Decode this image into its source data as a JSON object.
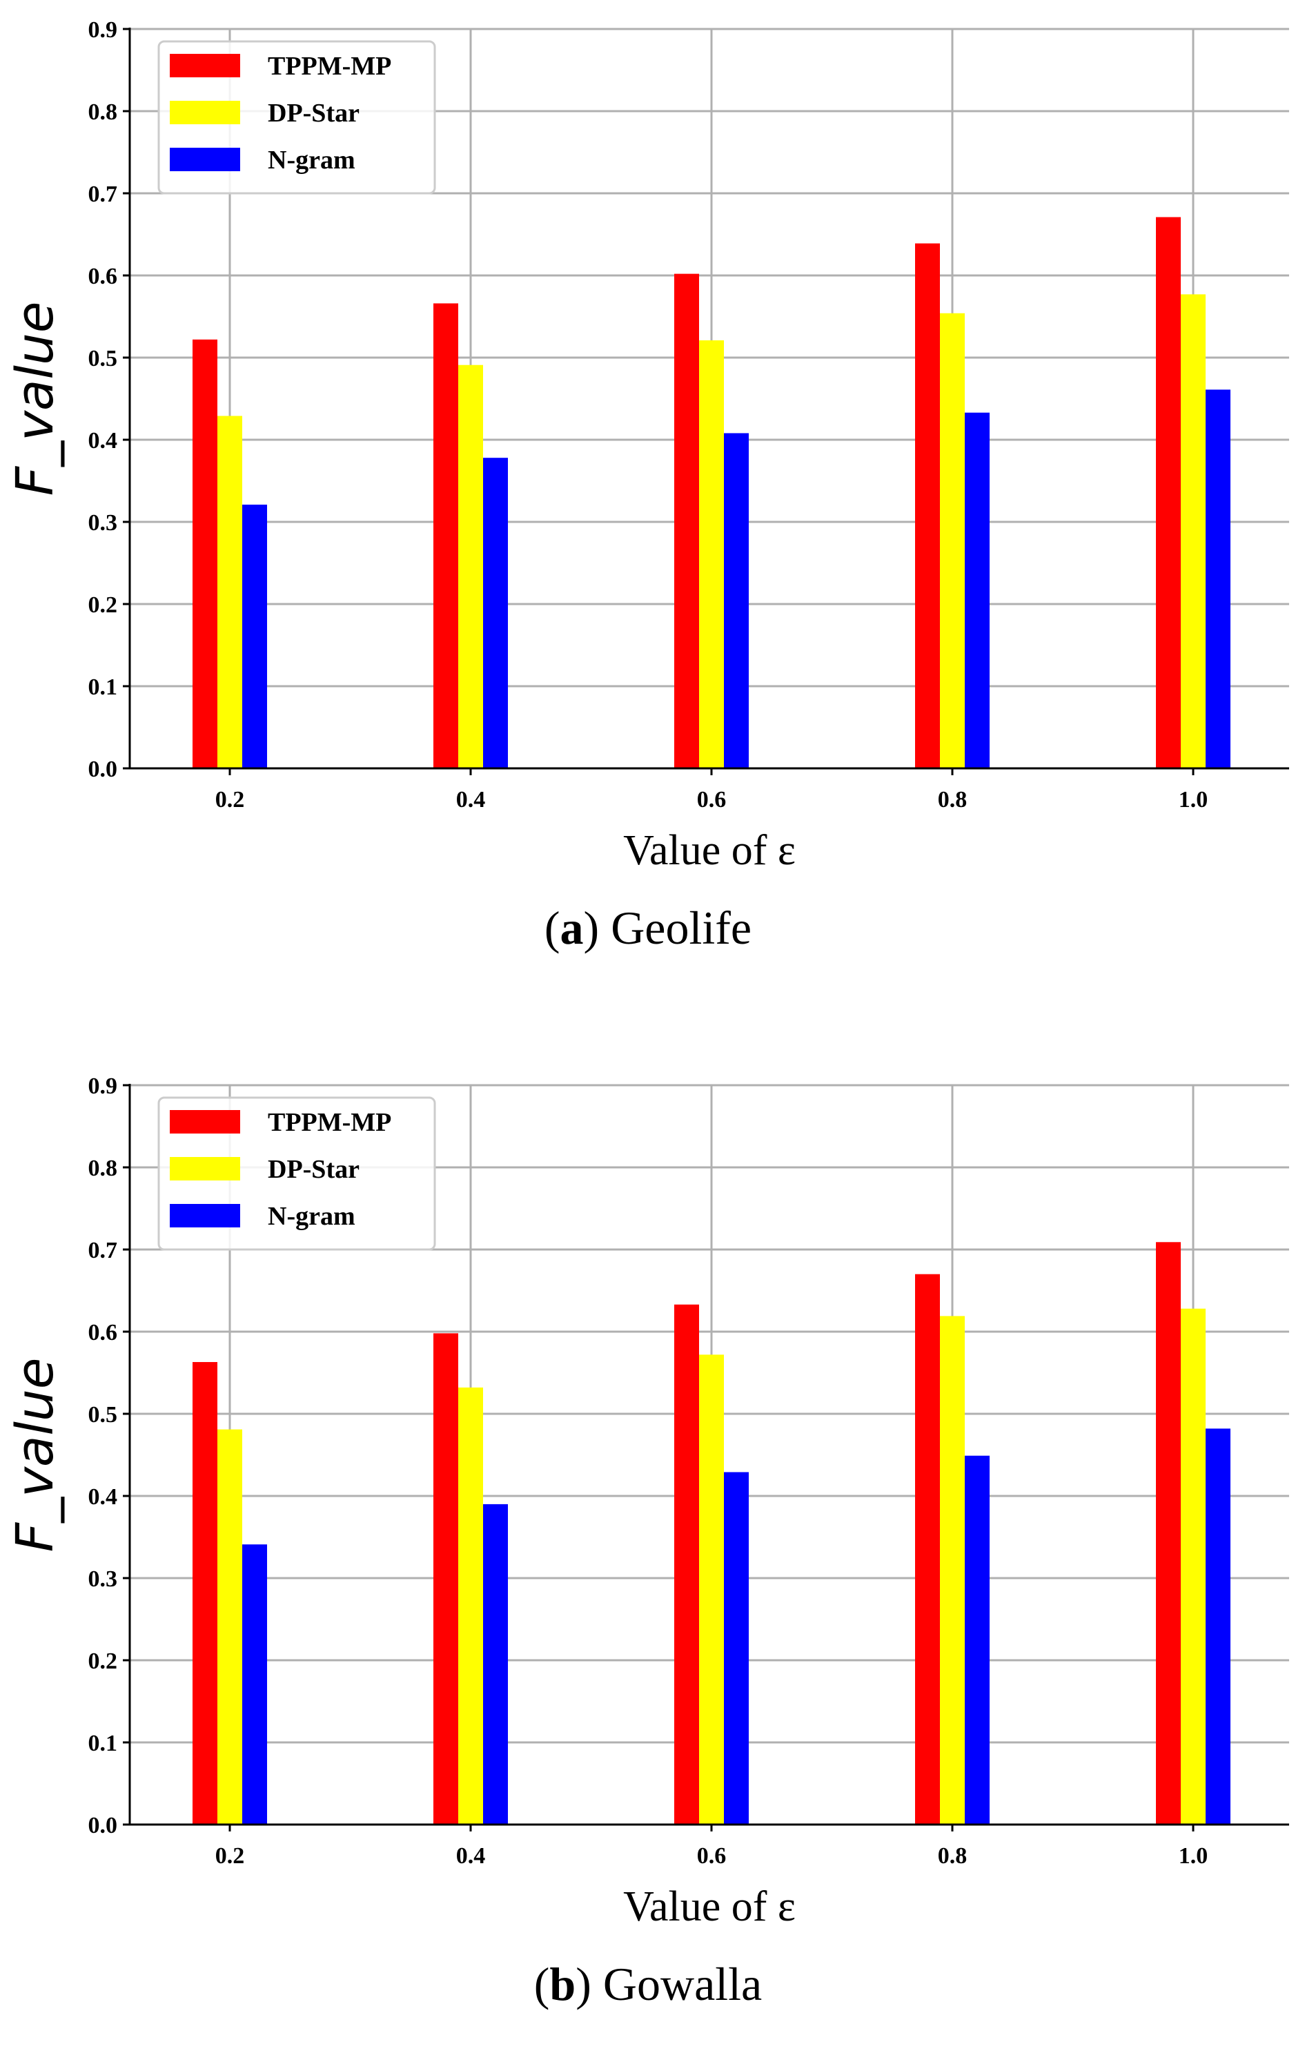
{
  "colors": {
    "tppm": "#ff0000",
    "dpstar": "#ffff00",
    "ngram": "#0000ff",
    "grid": "#b0b0b0",
    "axis": "#000000"
  },
  "chart_data": [
    {
      "type": "bar",
      "caption_letter": "a",
      "caption_name": "Geolife",
      "xlabel": "Value of ε",
      "ylabel": "F_value",
      "categories": [
        "0.2",
        "0.4",
        "0.6",
        "0.8",
        "1.0"
      ],
      "yticks": [
        "0.0",
        "0.1",
        "0.2",
        "0.3",
        "0.4",
        "0.5",
        "0.6",
        "0.7",
        "0.8",
        "0.9"
      ],
      "ylim": [
        0,
        0.9
      ],
      "grid": true,
      "legend_position": "top-left",
      "series": [
        {
          "name": "TPPM-MP",
          "color": "#ff0000",
          "values": [
            0.522,
            0.566,
            0.602,
            0.639,
            0.671
          ]
        },
        {
          "name": "DP-Star",
          "color": "#ffff00",
          "values": [
            0.429,
            0.491,
            0.521,
            0.554,
            0.577
          ]
        },
        {
          "name": "N-gram",
          "color": "#0000ff",
          "values": [
            0.321,
            0.378,
            0.408,
            0.433,
            0.461
          ]
        }
      ]
    },
    {
      "type": "bar",
      "caption_letter": "b",
      "caption_name": "Gowalla",
      "xlabel": "Value of ε",
      "ylabel": "F_value",
      "categories": [
        "0.2",
        "0.4",
        "0.6",
        "0.8",
        "1.0"
      ],
      "yticks": [
        "0.0",
        "0.1",
        "0.2",
        "0.3",
        "0.4",
        "0.5",
        "0.6",
        "0.7",
        "0.8",
        "0.9"
      ],
      "ylim": [
        0,
        0.9
      ],
      "grid": true,
      "legend_position": "top-left",
      "series": [
        {
          "name": "TPPM-MP",
          "color": "#ff0000",
          "values": [
            0.563,
            0.598,
            0.633,
            0.67,
            0.709
          ]
        },
        {
          "name": "DP-Star",
          "color": "#ffff00",
          "values": [
            0.481,
            0.532,
            0.572,
            0.619,
            0.628
          ]
        },
        {
          "name": "N-gram",
          "color": "#0000ff",
          "values": [
            0.341,
            0.39,
            0.429,
            0.449,
            0.482
          ]
        }
      ]
    }
  ]
}
